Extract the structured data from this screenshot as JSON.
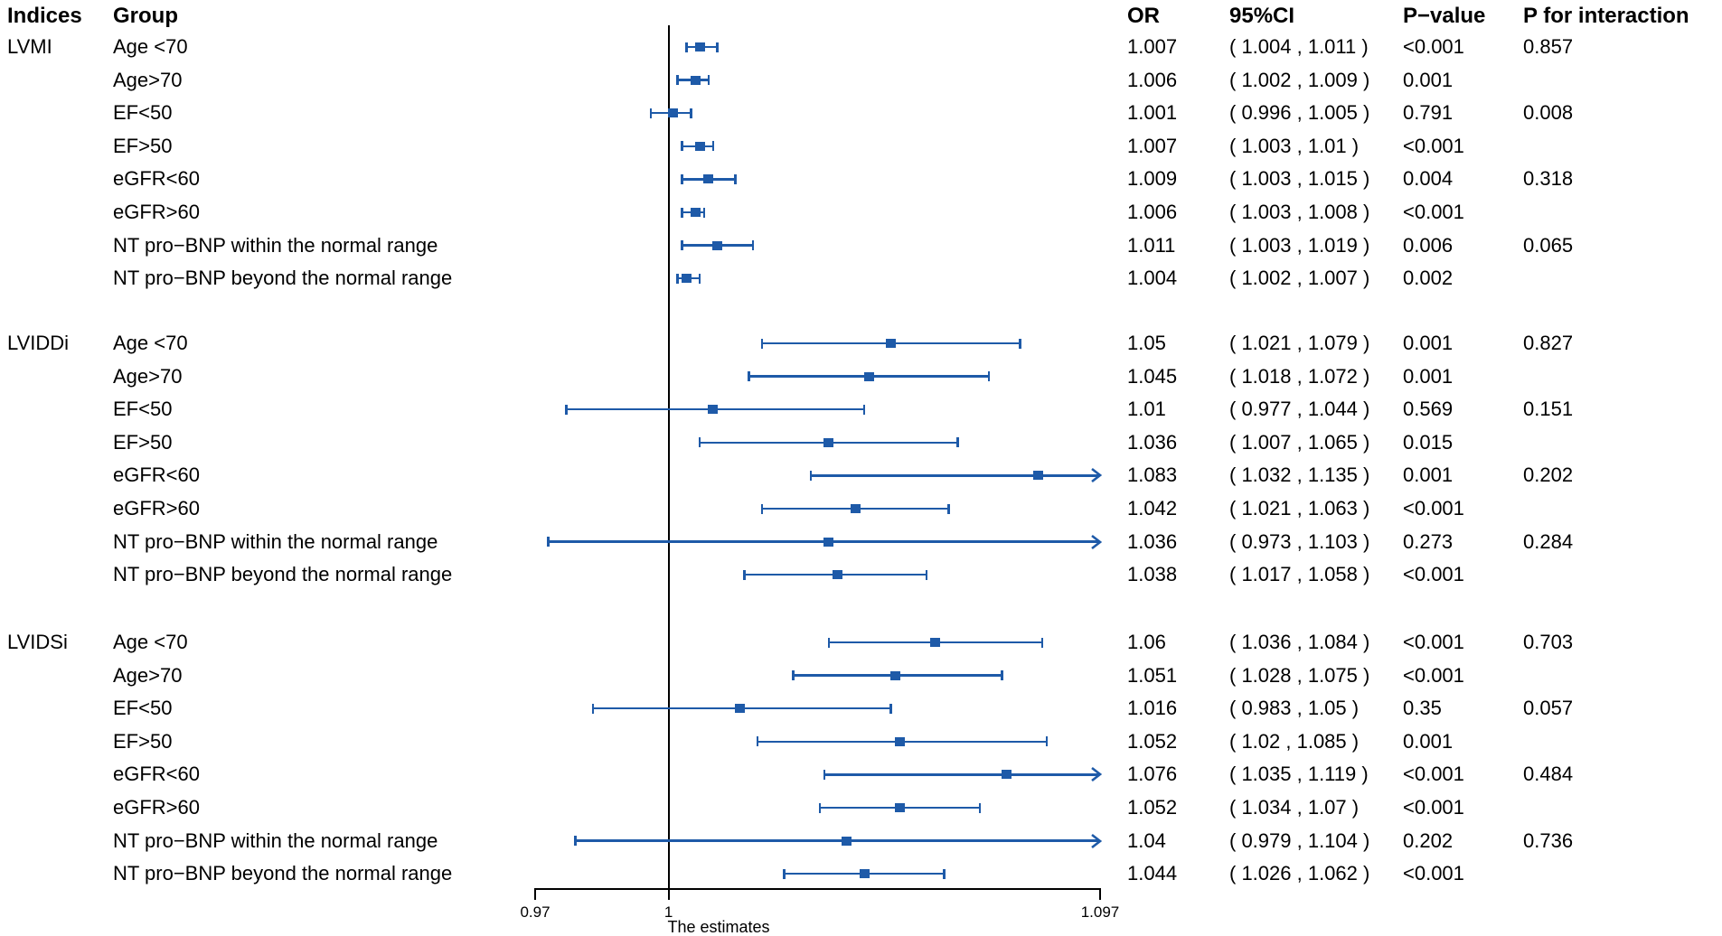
{
  "header": {
    "indices": "Indices",
    "group": "Group",
    "or": "OR",
    "ci": "95%CI",
    "p_value": "P−value",
    "p_interaction": "P for interaction"
  },
  "colors": {
    "marker_blue": "#1e5aa8",
    "axis_black": "#000000",
    "text_black": "#000000"
  },
  "chart_data": {
    "type": "forest",
    "xlabel": "The estimates",
    "axis": {
      "min": 0.97,
      "max": 1.097,
      "reference_line": 1,
      "ticks": [
        {
          "value": 0.97,
          "label": "0.97"
        },
        {
          "value": 1,
          "label": "1"
        },
        {
          "value": 1.097,
          "label": "1.097"
        }
      ]
    },
    "sections": [
      {
        "index": "LVMI",
        "rows": [
          {
            "group": "Age <70",
            "or": 1.007,
            "ci_low": 1.004,
            "ci_high": 1.011,
            "or_label": "1.007",
            "ci_label": "( 1.004 , 1.011 )",
            "p_value": "<0.001",
            "p_interaction": "0.857"
          },
          {
            "group": "Age>70",
            "or": 1.006,
            "ci_low": 1.002,
            "ci_high": 1.009,
            "or_label": "1.006",
            "ci_label": "( 1.002 , 1.009 )",
            "p_value": "0.001",
            "p_interaction": ""
          },
          {
            "group": "EF<50",
            "or": 1.001,
            "ci_low": 0.996,
            "ci_high": 1.005,
            "or_label": "1.001",
            "ci_label": "( 0.996 , 1.005 )",
            "p_value": "0.791",
            "p_interaction": "0.008"
          },
          {
            "group": "EF>50",
            "or": 1.007,
            "ci_low": 1.003,
            "ci_high": 1.01,
            "or_label": "1.007",
            "ci_label": "( 1.003 , 1.01 )",
            "p_value": "<0.001",
            "p_interaction": ""
          },
          {
            "group": "eGFR<60",
            "or": 1.009,
            "ci_low": 1.003,
            "ci_high": 1.015,
            "or_label": "1.009",
            "ci_label": "( 1.003 , 1.015 )",
            "p_value": "0.004",
            "p_interaction": "0.318"
          },
          {
            "group": "eGFR>60",
            "or": 1.006,
            "ci_low": 1.003,
            "ci_high": 1.008,
            "or_label": "1.006",
            "ci_label": "( 1.003 , 1.008 )",
            "p_value": "<0.001",
            "p_interaction": ""
          },
          {
            "group": "NT pro−BNP within the normal range",
            "or": 1.011,
            "ci_low": 1.003,
            "ci_high": 1.019,
            "or_label": "1.011",
            "ci_label": "( 1.003 , 1.019 )",
            "p_value": "0.006",
            "p_interaction": "0.065"
          },
          {
            "group": "NT pro−BNP beyond the normal range",
            "or": 1.004,
            "ci_low": 1.002,
            "ci_high": 1.007,
            "or_label": "1.004",
            "ci_label": "( 1.002 , 1.007 )",
            "p_value": "0.002",
            "p_interaction": ""
          }
        ]
      },
      {
        "index": "LVIDDi",
        "rows": [
          {
            "group": "Age <70",
            "or": 1.05,
            "ci_low": 1.021,
            "ci_high": 1.079,
            "or_label": "1.05",
            "ci_label": "( 1.021 , 1.079 )",
            "p_value": "0.001",
            "p_interaction": "0.827"
          },
          {
            "group": "Age>70",
            "or": 1.045,
            "ci_low": 1.018,
            "ci_high": 1.072,
            "or_label": "1.045",
            "ci_label": "( 1.018 , 1.072 )",
            "p_value": "0.001",
            "p_interaction": ""
          },
          {
            "group": "EF<50",
            "or": 1.01,
            "ci_low": 0.977,
            "ci_high": 1.044,
            "or_label": "1.01",
            "ci_label": "( 0.977 , 1.044 )",
            "p_value": "0.569",
            "p_interaction": "0.151"
          },
          {
            "group": "EF>50",
            "or": 1.036,
            "ci_low": 1.007,
            "ci_high": 1.065,
            "or_label": "1.036",
            "ci_label": "( 1.007 , 1.065 )",
            "p_value": "0.015",
            "p_interaction": ""
          },
          {
            "group": "eGFR<60",
            "or": 1.083,
            "ci_low": 1.032,
            "ci_high": 1.135,
            "or_label": "1.083",
            "ci_label": "( 1.032 , 1.135 )",
            "p_value": "0.001",
            "p_interaction": "0.202"
          },
          {
            "group": "eGFR>60",
            "or": 1.042,
            "ci_low": 1.021,
            "ci_high": 1.063,
            "or_label": "1.042",
            "ci_label": "( 1.021 , 1.063 )",
            "p_value": "<0.001",
            "p_interaction": ""
          },
          {
            "group": "NT pro−BNP within the normal range",
            "or": 1.036,
            "ci_low": 0.973,
            "ci_high": 1.103,
            "or_label": "1.036",
            "ci_label": "( 0.973 , 1.103 )",
            "p_value": "0.273",
            "p_interaction": "0.284"
          },
          {
            "group": "NT pro−BNP beyond the normal range",
            "or": 1.038,
            "ci_low": 1.017,
            "ci_high": 1.058,
            "or_label": "1.038",
            "ci_label": "( 1.017 , 1.058 )",
            "p_value": "<0.001",
            "p_interaction": ""
          }
        ]
      },
      {
        "index": "LVIDSi",
        "rows": [
          {
            "group": "Age <70",
            "or": 1.06,
            "ci_low": 1.036,
            "ci_high": 1.084,
            "or_label": "1.06",
            "ci_label": "( 1.036 , 1.084 )",
            "p_value": "<0.001",
            "p_interaction": "0.703"
          },
          {
            "group": "Age>70",
            "or": 1.051,
            "ci_low": 1.028,
            "ci_high": 1.075,
            "or_label": "1.051",
            "ci_label": "( 1.028 , 1.075 )",
            "p_value": "<0.001",
            "p_interaction": ""
          },
          {
            "group": "EF<50",
            "or": 1.016,
            "ci_low": 0.983,
            "ci_high": 1.05,
            "or_label": "1.016",
            "ci_label": "( 0.983 , 1.05 )",
            "p_value": "0.35",
            "p_interaction": "0.057"
          },
          {
            "group": "EF>50",
            "or": 1.052,
            "ci_low": 1.02,
            "ci_high": 1.085,
            "or_label": "1.052",
            "ci_label": "( 1.02 , 1.085 )",
            "p_value": "0.001",
            "p_interaction": ""
          },
          {
            "group": "eGFR<60",
            "or": 1.076,
            "ci_low": 1.035,
            "ci_high": 1.119,
            "or_label": "1.076",
            "ci_label": "( 1.035 , 1.119 )",
            "p_value": "<0.001",
            "p_interaction": "0.484"
          },
          {
            "group": "eGFR>60",
            "or": 1.052,
            "ci_low": 1.034,
            "ci_high": 1.07,
            "or_label": "1.052",
            "ci_label": "( 1.034 , 1.07 )",
            "p_value": "<0.001",
            "p_interaction": ""
          },
          {
            "group": "NT pro−BNP within the normal range",
            "or": 1.04,
            "ci_low": 0.979,
            "ci_high": 1.104,
            "or_label": "1.04",
            "ci_label": "( 0.979 , 1.104 )",
            "p_value": "0.202",
            "p_interaction": "0.736"
          },
          {
            "group": "NT pro−BNP beyond the normal range",
            "or": 1.044,
            "ci_low": 1.026,
            "ci_high": 1.062,
            "or_label": "1.044",
            "ci_label": "( 1.026 , 1.062 )",
            "p_value": "<0.001",
            "p_interaction": ""
          }
        ]
      }
    ]
  }
}
